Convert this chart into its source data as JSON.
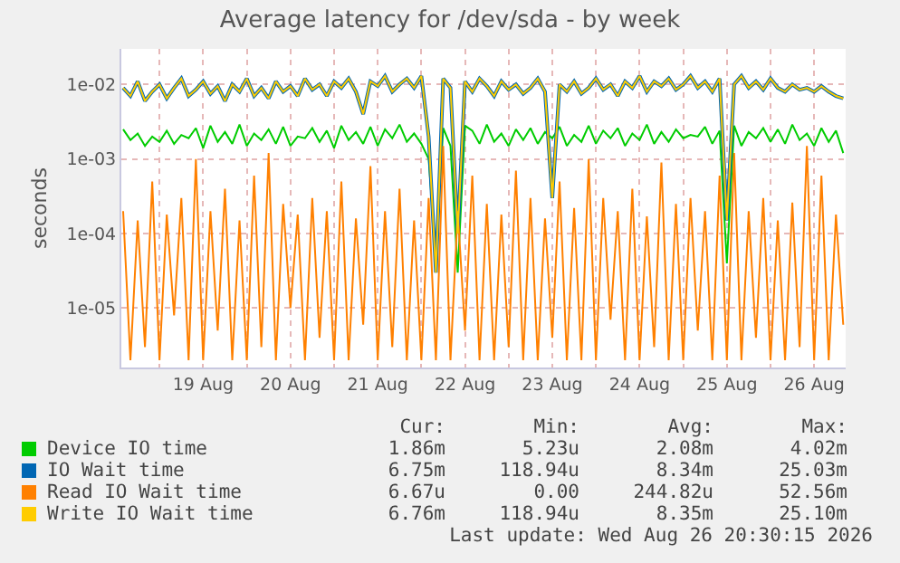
{
  "chart_data": {
    "type": "line",
    "title": "Average latency for /dev/sda - by week",
    "ylabel": "seconds",
    "log": "y",
    "grid": true,
    "legend": "bottom",
    "marker": "none",
    "line_style": "solid",
    "xlim": [
      "2026-08-18T13:30",
      "2026-08-26T20:40"
    ],
    "xticks": [
      {
        "value": "2026-08-19T00:00",
        "label": null
      },
      {
        "value": "2026-08-19T12:00",
        "label": "19 Aug"
      },
      {
        "value": "2026-08-20T00:00",
        "label": null
      },
      {
        "value": "2026-08-20T12:00",
        "label": "20 Aug"
      },
      {
        "value": "2026-08-21T00:00",
        "label": null
      },
      {
        "value": "2026-08-21T12:00",
        "label": "21 Aug"
      },
      {
        "value": "2026-08-22T00:00",
        "label": null
      },
      {
        "value": "2026-08-22T12:00",
        "label": "22 Aug"
      },
      {
        "value": "2026-08-23T00:00",
        "label": null
      },
      {
        "value": "2026-08-23T12:00",
        "label": "23 Aug"
      },
      {
        "value": "2026-08-24T00:00",
        "label": null
      },
      {
        "value": "2026-08-24T12:00",
        "label": "24 Aug"
      },
      {
        "value": "2026-08-25T00:00",
        "label": null
      },
      {
        "value": "2026-08-25T12:00",
        "label": "25 Aug"
      },
      {
        "value": "2026-08-26T00:00",
        "label": null
      },
      {
        "value": "2026-08-26T12:00",
        "label": "26 Aug"
      }
    ],
    "ylim": [
      1.6e-06,
      0.03
    ],
    "yticks": [
      {
        "value": 1e-05,
        "label": "1e-05"
      },
      {
        "value": 0.0001,
        "label": "1e-04"
      },
      {
        "value": 0.001,
        "label": "1e-03"
      },
      {
        "value": 0.01,
        "label": "1e-02"
      }
    ],
    "x": [
      "2026-08-18T14:00",
      "2026-08-18T16:00",
      "2026-08-18T18:00",
      "2026-08-18T20:00",
      "2026-08-18T22:00",
      "2026-08-19T00:00",
      "2026-08-19T02:00",
      "2026-08-19T04:00",
      "2026-08-19T06:00",
      "2026-08-19T08:00",
      "2026-08-19T10:00",
      "2026-08-19T12:00",
      "2026-08-19T14:00",
      "2026-08-19T16:00",
      "2026-08-19T18:00",
      "2026-08-19T20:00",
      "2026-08-19T22:00",
      "2026-08-20T00:00",
      "2026-08-20T02:00",
      "2026-08-20T04:00",
      "2026-08-20T06:00",
      "2026-08-20T08:00",
      "2026-08-20T10:00",
      "2026-08-20T12:00",
      "2026-08-20T14:00",
      "2026-08-20T16:00",
      "2026-08-20T18:00",
      "2026-08-20T20:00",
      "2026-08-20T22:00",
      "2026-08-21T00:00",
      "2026-08-21T02:00",
      "2026-08-21T04:00",
      "2026-08-21T06:00",
      "2026-08-21T08:00",
      "2026-08-21T10:00",
      "2026-08-21T12:00",
      "2026-08-21T14:00",
      "2026-08-21T16:00",
      "2026-08-21T18:00",
      "2026-08-21T20:00",
      "2026-08-21T22:00",
      "2026-08-22T00:00",
      "2026-08-22T02:00",
      "2026-08-22T04:00",
      "2026-08-22T06:00",
      "2026-08-22T08:00",
      "2026-08-22T10:00",
      "2026-08-22T12:00",
      "2026-08-22T14:00",
      "2026-08-22T16:00",
      "2026-08-22T18:00",
      "2026-08-22T20:00",
      "2026-08-22T22:00",
      "2026-08-23T00:00",
      "2026-08-23T02:00",
      "2026-08-23T04:00",
      "2026-08-23T06:00",
      "2026-08-23T08:00",
      "2026-08-23T10:00",
      "2026-08-23T12:00",
      "2026-08-23T14:00",
      "2026-08-23T16:00",
      "2026-08-23T18:00",
      "2026-08-23T20:00",
      "2026-08-23T22:00",
      "2026-08-24T00:00",
      "2026-08-24T02:00",
      "2026-08-24T04:00",
      "2026-08-24T06:00",
      "2026-08-24T08:00",
      "2026-08-24T10:00",
      "2026-08-24T12:00",
      "2026-08-24T14:00",
      "2026-08-24T16:00",
      "2026-08-24T18:00",
      "2026-08-24T20:00",
      "2026-08-24T22:00",
      "2026-08-25T00:00",
      "2026-08-25T02:00",
      "2026-08-25T04:00",
      "2026-08-25T06:00",
      "2026-08-25T08:00",
      "2026-08-25T10:00",
      "2026-08-25T12:00",
      "2026-08-25T14:00",
      "2026-08-25T16:00",
      "2026-08-25T18:00",
      "2026-08-25T20:00",
      "2026-08-25T22:00",
      "2026-08-26T00:00",
      "2026-08-26T02:00",
      "2026-08-26T04:00",
      "2026-08-26T06:00",
      "2026-08-26T08:00",
      "2026-08-26T10:00",
      "2026-08-26T12:00",
      "2026-08-26T14:00",
      "2026-08-26T16:00",
      "2026-08-26T18:00",
      "2026-08-26T20:00"
    ],
    "series": [
      {
        "name": "Device IO time",
        "color": "#00cc00",
        "values": [
          0.0025,
          0.0018,
          0.0022,
          0.0015,
          0.002,
          0.0017,
          0.0024,
          0.0016,
          0.0021,
          0.0019,
          0.0026,
          0.0014,
          0.0028,
          0.0017,
          0.0023,
          0.0016,
          0.0029,
          0.0015,
          0.0022,
          0.0018,
          0.0025,
          0.0016,
          0.0027,
          0.0015,
          0.002,
          0.0019,
          0.0026,
          0.0017,
          0.0024,
          0.0014,
          0.0028,
          0.0018,
          0.0023,
          0.0016,
          0.0027,
          0.0015,
          0.0025,
          0.0019,
          0.0029,
          0.0017,
          0.0022,
          0.0016,
          0.001,
          5e-05,
          0.0026,
          0.0015,
          3e-05,
          0.0028,
          0.0024,
          0.0016,
          0.0029,
          0.0017,
          0.0022,
          0.0015,
          0.0025,
          0.0018,
          0.0026,
          0.0016,
          0.0023,
          0.0019,
          0.0027,
          0.0015,
          0.0021,
          0.0017,
          0.0028,
          0.0016,
          0.0024,
          0.0019,
          0.0026,
          0.0015,
          0.0022,
          0.0018,
          0.0029,
          0.0016,
          0.0023,
          0.0017,
          0.0025,
          0.0019,
          0.0021,
          0.002,
          0.0027,
          0.0016,
          0.0024,
          4e-05,
          0.0028,
          0.0015,
          0.0023,
          0.0019,
          0.0026,
          0.0017,
          0.0025,
          0.0016,
          0.0029,
          0.0018,
          0.0022,
          0.0015,
          0.0026,
          0.0017,
          0.0024,
          0.0012
        ]
      },
      {
        "name": "IO Wait time",
        "color": "#0066b3",
        "values": [
          0.009,
          0.007,
          0.011,
          0.006,
          0.008,
          0.01,
          0.0065,
          0.009,
          0.012,
          0.007,
          0.0085,
          0.011,
          0.0075,
          0.0095,
          0.006,
          0.01,
          0.008,
          0.012,
          0.007,
          0.009,
          0.0065,
          0.011,
          0.008,
          0.0095,
          0.007,
          0.012,
          0.0085,
          0.01,
          0.007,
          0.011,
          0.009,
          0.012,
          0.008,
          0.004,
          0.011,
          0.0095,
          0.013,
          0.008,
          0.01,
          0.012,
          0.009,
          0.013,
          0.002,
          3e-05,
          0.012,
          0.009,
          0.0001,
          0.011,
          0.008,
          0.012,
          0.0095,
          0.007,
          0.011,
          0.0085,
          0.01,
          0.0075,
          0.009,
          0.012,
          0.008,
          0.0003,
          0.01,
          0.008,
          0.011,
          0.0075,
          0.009,
          0.012,
          0.0085,
          0.01,
          0.007,
          0.011,
          0.009,
          0.013,
          0.008,
          0.011,
          0.0095,
          0.012,
          0.0085,
          0.01,
          0.013,
          0.009,
          0.011,
          0.008,
          0.012,
          0.00015,
          0.01,
          0.013,
          0.009,
          0.011,
          0.0085,
          0.012,
          0.009,
          0.008,
          0.01,
          0.0085,
          0.009,
          0.008,
          0.0095,
          0.008,
          0.007,
          0.0065
        ]
      },
      {
        "name": "Read IO Wait time",
        "color": "#ff8000",
        "values": [
          0.0002,
          2e-06,
          0.00015,
          3e-06,
          0.0005,
          2e-06,
          0.00018,
          8e-06,
          0.0003,
          2e-06,
          0.001,
          2e-06,
          0.0002,
          5e-06,
          0.0004,
          2e-06,
          0.00015,
          2e-06,
          0.0006,
          3e-06,
          0.0012,
          2e-06,
          0.00025,
          1e-05,
          0.00018,
          2e-06,
          0.0003,
          4e-06,
          0.0002,
          2e-06,
          0.0005,
          2e-06,
          0.00016,
          6e-06,
          0.0008,
          2e-06,
          0.0002,
          3e-06,
          0.0004,
          2e-06,
          0.00015,
          2e-06,
          0.0003,
          2e-06,
          0.0015,
          2e-06,
          0.0002,
          5e-06,
          0.0006,
          2e-06,
          0.00025,
          2e-06,
          0.00018,
          3e-06,
          0.0007,
          2e-06,
          0.0003,
          2e-06,
          0.00016,
          4e-06,
          0.0005,
          2e-06,
          0.00022,
          2e-06,
          0.001,
          2e-06,
          0.0003,
          7e-06,
          0.0002,
          2e-06,
          0.0004,
          2e-06,
          0.00017,
          3e-06,
          0.0009,
          2e-06,
          0.00025,
          2e-06,
          0.0003,
          5e-06,
          0.0002,
          2e-06,
          0.0006,
          2e-06,
          0.0012,
          2e-06,
          0.0002,
          4e-06,
          0.0003,
          2e-06,
          0.00015,
          2e-06,
          0.00026,
          3e-06,
          0.0015,
          2e-06,
          0.0006,
          2e-06,
          0.00018,
          6e-06
        ]
      },
      {
        "name": "Write IO Wait time",
        "color": "#ffcc00",
        "values": [
          0.009,
          0.007,
          0.011,
          0.006,
          0.008,
          0.01,
          0.0065,
          0.009,
          0.012,
          0.007,
          0.0085,
          0.011,
          0.0075,
          0.0095,
          0.006,
          0.01,
          0.008,
          0.012,
          0.007,
          0.009,
          0.0065,
          0.011,
          0.008,
          0.0095,
          0.007,
          0.012,
          0.0085,
          0.01,
          0.007,
          0.011,
          0.009,
          0.012,
          0.008,
          0.004,
          0.011,
          0.0095,
          0.013,
          0.008,
          0.01,
          0.012,
          0.009,
          0.013,
          0.002,
          3e-05,
          0.012,
          0.009,
          0.0001,
          0.011,
          0.008,
          0.012,
          0.0095,
          0.007,
          0.011,
          0.0085,
          0.01,
          0.0075,
          0.009,
          0.012,
          0.008,
          0.0003,
          0.01,
          0.008,
          0.011,
          0.0075,
          0.009,
          0.012,
          0.0085,
          0.01,
          0.007,
          0.011,
          0.009,
          0.013,
          0.008,
          0.011,
          0.0095,
          0.012,
          0.0085,
          0.01,
          0.013,
          0.009,
          0.011,
          0.008,
          0.012,
          0.00015,
          0.01,
          0.013,
          0.009,
          0.011,
          0.0085,
          0.012,
          0.009,
          0.008,
          0.01,
          0.0085,
          0.009,
          0.008,
          0.0095,
          0.008,
          0.007,
          0.0065
        ]
      }
    ],
    "annotations": [
      "Cur:",
      "Min:",
      "Avg:",
      "Max:",
      "1.86m",
      "5.23u",
      "2.08m",
      "4.02m",
      "6.75m",
      "118.94u",
      "8.34m",
      "25.03m",
      "6.67u",
      "0.00",
      "244.82u",
      "52.56m",
      "6.76m",
      "118.94u",
      "8.35m",
      "25.10m",
      "Last update: Wed Aug 26 20:30:15 2026"
    ]
  }
}
